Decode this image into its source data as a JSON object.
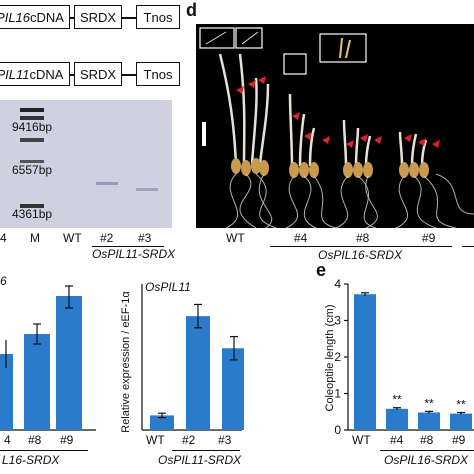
{
  "constructs": [
    {
      "cdna": "PIL16",
      "cdna_suffix": " cDNA",
      "srdx": "SRDX",
      "tnos": "Tnos"
    },
    {
      "cdna": "PIL11",
      "cdna_suffix": " cDNA",
      "srdx": "SRDX",
      "tnos": "Tnos"
    }
  ],
  "gel": {
    "markers": [
      "9416bp",
      "6557bp",
      "4361bp"
    ],
    "lanes": [
      "4",
      "M",
      "WT",
      "#2",
      "#3"
    ],
    "group_label": "OsPIL11-SRDX"
  },
  "panel_d": {
    "letter": "d",
    "lanes": [
      "WT",
      "#4",
      "#8",
      "#9"
    ],
    "group_label": "OsPIL16-SRDX"
  },
  "chart_left": {
    "title_fragment": "6",
    "xticks": [
      "4",
      "#8",
      "#9"
    ],
    "group_label": "L16-SRDX"
  },
  "chart_data": [
    {
      "type": "bar",
      "title": "OsPIL11",
      "ylabel": "Relative expression / eEF-1α",
      "categories": [
        "WT",
        "#2",
        "#3"
      ],
      "values": [
        1.0,
        7.8,
        5.6
      ],
      "errors": [
        0.15,
        0.8,
        0.8
      ],
      "ylim": [
        0,
        10
      ],
      "group_label": "OsPIL11-SRDX"
    },
    {
      "type": "bar",
      "letter": "e",
      "ylabel": "Coleoptile length (cm)",
      "categories": [
        "WT",
        "#4",
        "#8",
        "#9"
      ],
      "values": [
        3.72,
        0.58,
        0.48,
        0.45
      ],
      "errors": [
        0.04,
        0.03,
        0.03,
        0.03
      ],
      "significance": [
        "",
        "**",
        "**",
        "**"
      ],
      "yticks": [
        "0",
        "1",
        "2",
        "3",
        "4"
      ],
      "ylim": [
        0,
        4
      ],
      "group_label": "OsPIL16-SRDX"
    }
  ],
  "colors": {
    "bar": "#2b7bcc",
    "gel_bg": "#cfd0e0",
    "photo_bg": "#000000"
  }
}
